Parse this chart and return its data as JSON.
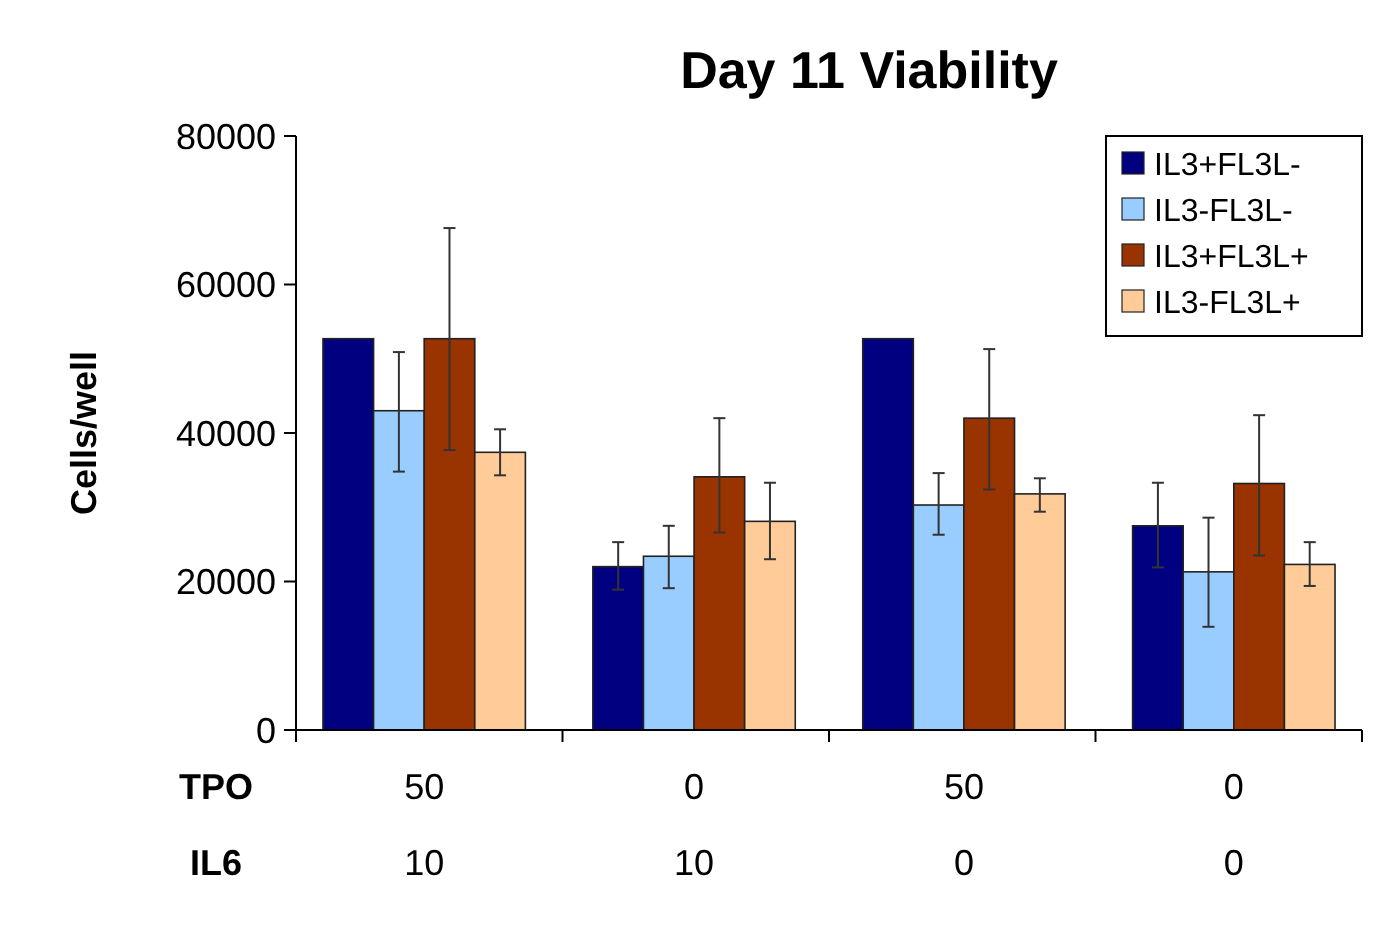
{
  "chart_data": {
    "type": "bar",
    "title": "Day 11 Viability",
    "ylabel": "Cells/well",
    "categories": [
      "50\n10",
      "0\n10",
      "50\n0",
      "0\n0"
    ],
    "annotations": [
      "TPO",
      "IL6"
    ],
    "series": [
      {
        "name": "IL3+FL3L-",
        "color": "#000080",
        "values": [
          52700,
          22000,
          52700,
          27500
        ],
        "errors": [
          null,
          [
            18900,
            25300
          ],
          null,
          [
            21900,
            33300
          ]
        ]
      },
      {
        "name": "IL3-FL3L-",
        "color": "#99ccff",
        "values": [
          43000,
          23400,
          30300,
          21300
        ],
        "errors": [
          [
            34800,
            50900
          ],
          [
            19100,
            27500
          ],
          [
            26300,
            34600
          ],
          [
            13900,
            28600
          ]
        ]
      },
      {
        "name": "IL3+FL3L+",
        "color": "#993300",
        "values": [
          52700,
          34100,
          42000,
          33200
        ],
        "errors": [
          [
            37700,
            67600
          ],
          [
            26600,
            42000
          ],
          [
            32400,
            51300
          ],
          [
            23500,
            42400
          ]
        ]
      },
      {
        "name": "IL3-FL3L+",
        "color": "#ffcc99",
        "values": [
          37400,
          28100,
          31800,
          22300
        ],
        "errors": [
          [
            34300,
            40500
          ],
          [
            23000,
            33300
          ],
          [
            29400,
            33900
          ],
          [
            19400,
            25300
          ]
        ]
      }
    ],
    "ylim": [
      0,
      80000
    ],
    "yticks": [
      0,
      20000,
      40000,
      60000,
      80000
    ],
    "grid": false,
    "legend": "top right"
  }
}
